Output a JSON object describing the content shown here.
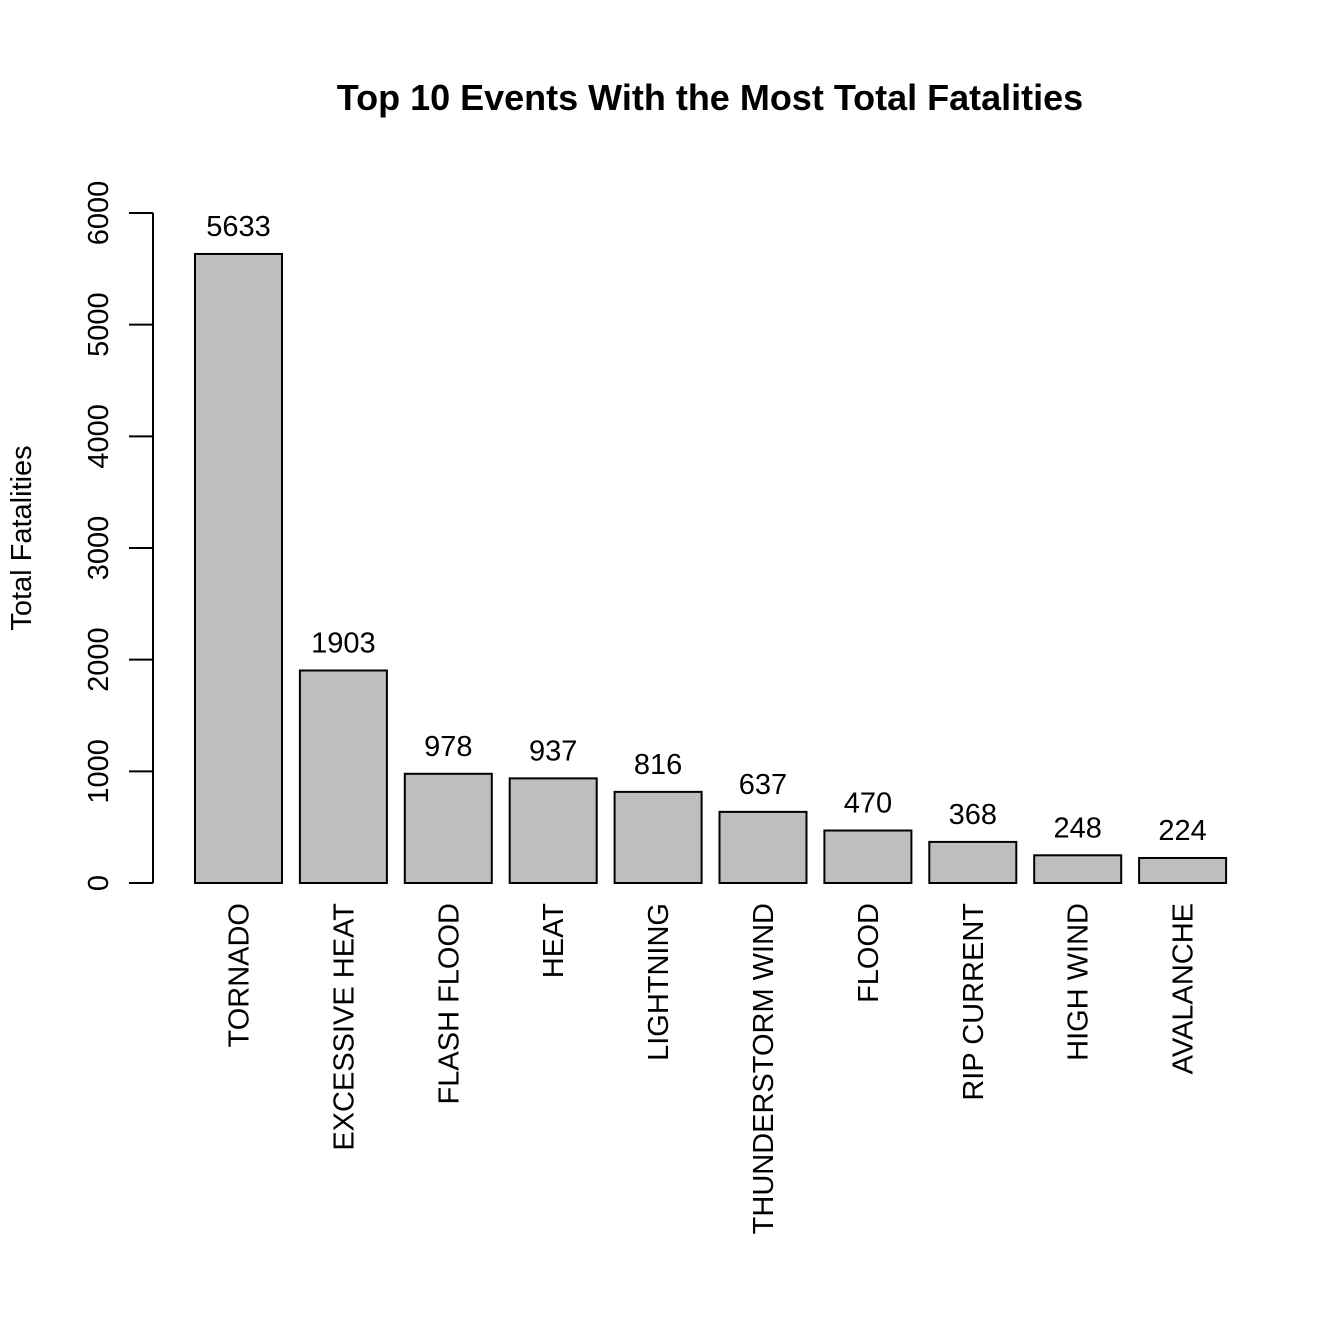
{
  "chart_data": {
    "type": "bar",
    "title": "Top 10 Events With the Most Total Fatalities",
    "xlabel": "",
    "ylabel": "Total Fatalities",
    "categories": [
      "TORNADO",
      "EXCESSIVE HEAT",
      "FLASH FLOOD",
      "HEAT",
      "LIGHTNING",
      "THUNDERSTORM WIND",
      "FLOOD",
      "RIP CURRENT",
      "HIGH WIND",
      "AVALANCHE"
    ],
    "values": [
      5633,
      1903,
      978,
      937,
      816,
      637,
      470,
      368,
      248,
      224
    ],
    "data_labels": [
      "5633",
      "1903",
      "978",
      "937",
      "816",
      "637",
      "470",
      "368",
      "248",
      "224"
    ],
    "ylim": [
      0,
      6000
    ],
    "yticks": [
      0,
      1000,
      2000,
      3000,
      4000,
      5000,
      6000
    ],
    "ytick_labels": [
      "0",
      "1000",
      "2000",
      "3000",
      "4000",
      "5000",
      "6000"
    ],
    "bar_color": "#bebebe",
    "grid": false,
    "legend": "none"
  }
}
